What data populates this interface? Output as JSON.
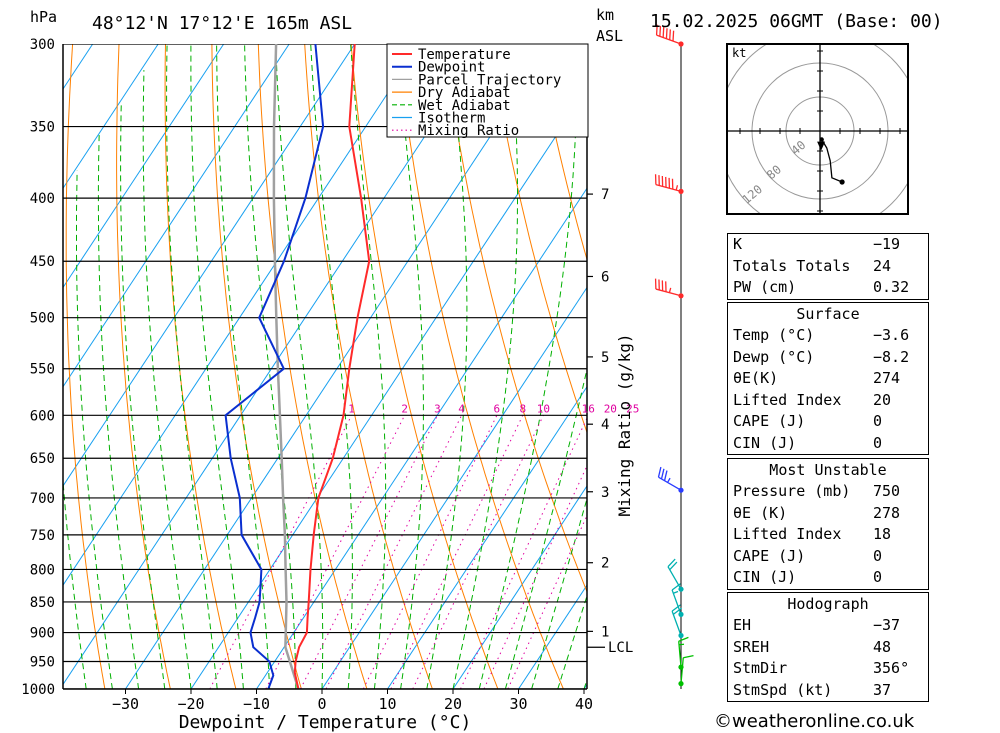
{
  "header": {
    "pressure_unit": "hPa",
    "location": "48°12'N  17°12'E  165m  ASL",
    "km_label": "km",
    "asl_label": "ASL",
    "datetime": "15.02.2025  06GMT  (Base: 00)"
  },
  "chart_data": {
    "type": "line",
    "chart_kind": "skew-t log-p diagram",
    "xlabel": "Dewpoint / Temperature (°C)",
    "ylabel": "hPa",
    "right_axis_label": "Mixing Ratio (g/kg)",
    "xlim": [
      -40,
      40
    ],
    "ylim": [
      1000,
      300
    ],
    "y_scale": "log",
    "x_ticks": [
      -30,
      -20,
      -10,
      0,
      10,
      20,
      30,
      40
    ],
    "x_tick_labels": [
      "−30",
      "−20",
      "−10",
      "0",
      "10",
      "20",
      "30",
      "40"
    ],
    "pressure_levels": [
      300,
      350,
      400,
      450,
      500,
      550,
      600,
      650,
      700,
      750,
      800,
      850,
      900,
      950,
      1000
    ],
    "km_ticks": [
      {
        "label": "7",
        "p": 397
      },
      {
        "label": "6",
        "p": 463
      },
      {
        "label": "5",
        "p": 538
      },
      {
        "label": "4",
        "p": 610
      },
      {
        "label": "3",
        "p": 692
      },
      {
        "label": "2",
        "p": 790
      },
      {
        "label": "1",
        "p": 898
      }
    ],
    "lcl": {
      "label": "LCL",
      "p": 925
    },
    "mixing_ratio_labels": [
      "1",
      "2",
      "3",
      "4",
      "6",
      "8",
      "10",
      "16",
      "20",
      "25"
    ],
    "mixing_ratio_values": [
      1,
      2,
      3,
      4,
      6,
      8,
      10,
      16,
      20,
      25
    ],
    "mixing_ratio_label_level": 600,
    "legend_position": "top-right",
    "legend": [
      {
        "name": "Temperature",
        "color": "#ff2a2a",
        "style": "solid"
      },
      {
        "name": "Dewpoint",
        "color": "#0a2fd0",
        "style": "solid"
      },
      {
        "name": "Parcel Trajectory",
        "color": "#a0a0a0",
        "style": "solid"
      },
      {
        "name": "Dry Adiabat",
        "color": "#ff8000",
        "style": "solid"
      },
      {
        "name": "Wet Adiabat",
        "color": "#00b000",
        "style": "dashed"
      },
      {
        "name": "Isotherm",
        "color": "#18a0f0",
        "style": "solid"
      },
      {
        "name": "Mixing Ratio",
        "color": "#e000a0",
        "style": "dotted"
      }
    ],
    "series": [
      {
        "name": "Temperature",
        "color": "#ff2a2a",
        "points": [
          [
            1000,
            -3.6
          ],
          [
            970,
            -5.8
          ],
          [
            950,
            -6.8
          ],
          [
            925,
            -7.7
          ],
          [
            900,
            -8.0
          ],
          [
            875,
            -9.4
          ],
          [
            850,
            -10.8
          ],
          [
            800,
            -13.8
          ],
          [
            750,
            -16.8
          ],
          [
            700,
            -19.8
          ],
          [
            650,
            -21.6
          ],
          [
            600,
            -24.3
          ],
          [
            550,
            -28.1
          ],
          [
            500,
            -32.0
          ],
          [
            450,
            -35.9
          ],
          [
            400,
            -43.5
          ],
          [
            350,
            -52.5
          ],
          [
            300,
            -60.0
          ]
        ]
      },
      {
        "name": "Dewpoint",
        "color": "#0a2fd0",
        "points": [
          [
            1000,
            -8.2
          ],
          [
            975,
            -8.8
          ],
          [
            950,
            -10.8
          ],
          [
            925,
            -14.7
          ],
          [
            900,
            -16.6
          ],
          [
            875,
            -17.4
          ],
          [
            850,
            -18.3
          ],
          [
            800,
            -21.3
          ],
          [
            750,
            -27.8
          ],
          [
            700,
            -31.8
          ],
          [
            650,
            -37.2
          ],
          [
            600,
            -42.3
          ],
          [
            550,
            -38.1
          ],
          [
            500,
            -47.0
          ],
          [
            450,
            -48.9
          ],
          [
            400,
            -52.0
          ],
          [
            350,
            -56.5
          ],
          [
            300,
            -66.0
          ]
        ]
      },
      {
        "name": "Parcel Trajectory",
        "color": "#a0a0a0",
        "points": [
          [
            1000,
            -3.6
          ],
          [
            925,
            -9.8
          ],
          [
            850,
            -14.2
          ],
          [
            800,
            -17.6
          ],
          [
            750,
            -21.2
          ],
          [
            700,
            -25.2
          ],
          [
            650,
            -29.4
          ],
          [
            600,
            -34.0
          ],
          [
            550,
            -39.0
          ],
          [
            500,
            -44.4
          ],
          [
            450,
            -50.3
          ],
          [
            400,
            -56.8
          ],
          [
            350,
            -64.0
          ],
          [
            300,
            -72.0
          ]
        ]
      }
    ],
    "wind_barbs": [
      {
        "p": 300,
        "dir": 290,
        "kt": 60
      },
      {
        "p": 395,
        "dir": 285,
        "kt": 65
      },
      {
        "p": 480,
        "dir": 285,
        "kt": 45
      },
      {
        "p": 690,
        "dir": 300,
        "kt": 35
      },
      {
        "p": 830,
        "dir": 330,
        "kt": 20
      },
      {
        "p": 870,
        "dir": 340,
        "kt": 15
      },
      {
        "p": 905,
        "dir": 340,
        "kt": 20
      },
      {
        "p": 960,
        "dir": 355,
        "kt": 15
      },
      {
        "p": 990,
        "dir": 5,
        "kt": 10
      }
    ],
    "hodograph": {
      "unit_label": "kt",
      "ring_labels": [
        "40",
        "80",
        "120"
      ],
      "ring_values": [
        40,
        80,
        120
      ],
      "trace_uv": [
        [
          2,
          -10
        ],
        [
          8,
          -20
        ],
        [
          12,
          -35
        ],
        [
          14,
          -55
        ],
        [
          26,
          -60
        ]
      ],
      "storm_motion": {
        "dir": 356,
        "kt": 37
      }
    }
  },
  "indices": {
    "k_label": "K",
    "k_value": "−19",
    "tt_label": "Totals Totals",
    "tt_value": "24",
    "pw_label": "PW (cm)",
    "pw_value": "0.32",
    "surface_title": "Surface",
    "s_temp_label": "Temp (°C)",
    "s_temp_value": "−3.6",
    "s_dewp_label": "Dewp (°C)",
    "s_dewp_value": "−8.2",
    "s_theta_label": "θE(K)",
    "s_theta_value": "274",
    "s_li_label": "Lifted Index",
    "s_li_value": "20",
    "s_cape_label": "CAPE (J)",
    "s_cape_value": "0",
    "s_cin_label": "CIN (J)",
    "s_cin_value": "0",
    "mu_title": "Most Unstable",
    "mu_pres_label": "Pressure (mb)",
    "mu_pres_value": "750",
    "mu_theta_label": "θE (K)",
    "mu_theta_value": "278",
    "mu_li_label": "Lifted Index",
    "mu_li_value": "18",
    "mu_cape_label": "CAPE (J)",
    "mu_cape_value": "0",
    "mu_cin_label": "CIN (J)",
    "mu_cin_value": "0",
    "hodo_title": "Hodograph",
    "eh_label": "EH",
    "eh_value": "−37",
    "sreh_label": "SREH",
    "sreh_value": "48",
    "stmdir_label": "StmDir",
    "stmdir_value": "356°",
    "stmspd_label": "StmSpd (kt)",
    "stmspd_value": "37"
  },
  "footer": {
    "copyright_symbol": "©",
    "site": "weatheronline.co.uk"
  }
}
